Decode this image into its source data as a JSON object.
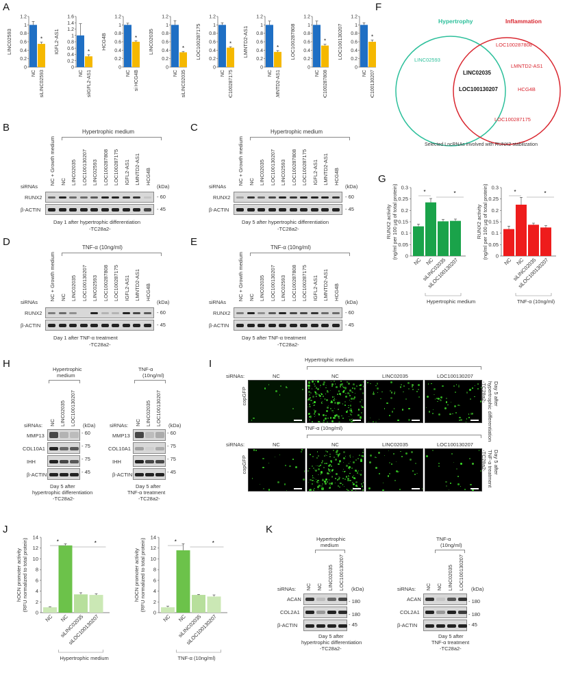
{
  "panels": {
    "A": "A",
    "B": "B",
    "C": "C",
    "D": "D",
    "E": "E",
    "F": "F",
    "G": "G",
    "H": "H",
    "I": "I",
    "J": "J",
    "K": "K"
  },
  "colors": {
    "nc_blue": "#1f6fc4",
    "si_yellow": "#f5b800",
    "hypertrophy_teal": "#2bbf9a",
    "inflammation_red": "#d9262f",
    "green_bar": "#1aa34a",
    "red_bar": "#ee1c1c",
    "j_dark_green": "#6cc24a",
    "j_light_green": "#cbe8b5"
  },
  "chart_data": [
    {
      "id": "A1",
      "type": "bar",
      "ylabel": "LINC02593",
      "categories": [
        "NC",
        "siLINC02593"
      ],
      "values": [
        1.0,
        0.55
      ],
      "errors": [
        0.08,
        0.04
      ],
      "ylim": [
        0,
        1.2
      ],
      "yticks": [
        "0",
        "0.2",
        "0.4",
        "0.6",
        "0.8",
        "1",
        "1.2"
      ],
      "significance": "*"
    },
    {
      "id": "A2",
      "type": "bar",
      "ylabel": "IGFL2-AS1",
      "categories": [
        "NC",
        "siIGFL2-AS1"
      ],
      "values": [
        1.0,
        0.34
      ],
      "errors": [
        0.37,
        0.05
      ],
      "ylim": [
        0,
        1.6
      ],
      "yticks": [
        "0",
        "0.2",
        "0.4",
        "0.6",
        "0.8",
        "1",
        "1.2",
        "1.4",
        "1.6"
      ],
      "significance": "*"
    },
    {
      "id": "A3",
      "type": "bar",
      "ylabel": "HCG4B",
      "categories": [
        "NC",
        "si HCG4B"
      ],
      "values": [
        1.0,
        0.6
      ],
      "errors": [
        0.04,
        0.02
      ],
      "ylim": [
        0,
        1.2
      ],
      "yticks": [
        "0",
        "0.2",
        "0.4",
        "0.6",
        "0.8",
        "1",
        "1.2"
      ],
      "significance": "*"
    },
    {
      "id": "A4",
      "type": "bar",
      "ylabel": "LINC02035",
      "categories": [
        "NC",
        "siLINC02035"
      ],
      "values": [
        1.0,
        0.35
      ],
      "errors": [
        0.1,
        0.02
      ],
      "ylim": [
        0,
        1.2
      ],
      "yticks": [
        "0",
        "0.2",
        "0.4",
        "0.6",
        "0.8",
        "1",
        "1.2"
      ],
      "significance": "*"
    },
    {
      "id": "A5",
      "type": "bar",
      "ylabel": "LOC100287175",
      "categories": [
        "NC",
        "siLOC100287175"
      ],
      "values": [
        1.0,
        0.46
      ],
      "errors": [
        0.05,
        0.02
      ],
      "ylim": [
        0,
        1.2
      ],
      "yticks": [
        "0",
        "0.2",
        "0.4",
        "0.6",
        "0.8",
        "1",
        "1.2"
      ],
      "significance": "*"
    },
    {
      "id": "A6",
      "type": "bar",
      "ylabel": "LMNTD2-AS1",
      "categories": [
        "NC",
        "siLMNTD2-AS1"
      ],
      "values": [
        1.0,
        0.36
      ],
      "errors": [
        0.09,
        0.03
      ],
      "ylim": [
        0,
        1.2
      ],
      "yticks": [
        "0",
        "0.2",
        "0.4",
        "0.6",
        "0.8",
        "1",
        "1.2"
      ],
      "significance": "*"
    },
    {
      "id": "A7",
      "type": "bar",
      "ylabel": "LOC100287808",
      "categories": [
        "NC",
        "siLOC100287808"
      ],
      "values": [
        1.0,
        0.51
      ],
      "errors": [
        0.09,
        0.03
      ],
      "ylim": [
        0,
        1.2
      ],
      "yticks": [
        "0",
        "0.2",
        "0.4",
        "0.6",
        "0.8",
        "1",
        "1.2"
      ],
      "significance": "*"
    },
    {
      "id": "A8",
      "type": "bar",
      "ylabel": "LOC100130207",
      "categories": [
        "NC",
        "siLOC100130207"
      ],
      "values": [
        1.0,
        0.6
      ],
      "errors": [
        0.05,
        0.04
      ],
      "ylim": [
        0,
        1.2
      ],
      "yticks": [
        "0",
        "0.2",
        "0.4",
        "0.6",
        "0.8",
        "1",
        "1.2"
      ],
      "significance": "*"
    },
    {
      "id": "G1",
      "type": "bar",
      "ylabel": "RUNX2 activity (ng/ml per 100 µg of total protein)",
      "categories": [
        "NC",
        "NC",
        "siLINC02035",
        "siLOC100130207"
      ],
      "values": [
        0.13,
        0.235,
        0.152,
        0.154
      ],
      "errors": [
        0.01,
        0.017,
        0.008,
        0.008
      ],
      "ylim": [
        0,
        0.3
      ],
      "yticks": [
        "0",
        "0.05",
        "0.1",
        "0.15",
        "0.2",
        "0.25",
        "0.3"
      ],
      "group_label": "Hypertrophic medium",
      "significance": [
        "*",
        "*"
      ]
    },
    {
      "id": "G2",
      "type": "bar",
      "ylabel": "RUNX2 activity (ng/ml per 100 µg of total protein)",
      "categories": [
        "NC",
        "NC",
        "siLINC02035",
        "siLOC100130207"
      ],
      "values": [
        0.118,
        0.225,
        0.137,
        0.125
      ],
      "errors": [
        0.013,
        0.032,
        0.007,
        0.008
      ],
      "ylim": [
        0,
        0.3
      ],
      "yticks": [
        "0",
        "0.05",
        "0.1",
        "0.15",
        "0.2",
        "0.25",
        "0.3"
      ],
      "group_label": "TNF-α (10ng/ml)",
      "significance": [
        "*",
        "*"
      ]
    },
    {
      "id": "J1",
      "type": "bar",
      "ylabel": "hOCN promoter activity (RFU normalized to total protein)",
      "categories": [
        "NC",
        "NC",
        "siLINC02035",
        "siLOC100130207"
      ],
      "values": [
        1.0,
        12.5,
        3.4,
        3.3
      ],
      "errors": [
        0.1,
        0.3,
        0.3,
        0.2
      ],
      "ylim": [
        0,
        14
      ],
      "yticks": [
        "0",
        "2",
        "4",
        "6",
        "8",
        "10",
        "12",
        "14"
      ],
      "group_label": "Hypertrophic medium",
      "significance": [
        "*",
        "*"
      ]
    },
    {
      "id": "J2",
      "type": "bar",
      "ylabel": "hOCN promoter activity (RFU normalized to total protein)",
      "categories": [
        "NC",
        "NC",
        "siLINC02035",
        "siLOC100130207"
      ],
      "values": [
        1.0,
        11.6,
        3.3,
        3.0
      ],
      "errors": [
        0.2,
        1.2,
        0.1,
        0.3
      ],
      "ylim": [
        0,
        14
      ],
      "yticks": [
        "0",
        "2",
        "4",
        "6",
        "8",
        "10",
        "12",
        "14"
      ],
      "group_label": "TNF-α (10ng/ml)",
      "significance": [
        "*",
        "*"
      ]
    }
  ],
  "venn": {
    "left_title": "Hypertrophy",
    "right_title": "Inflammation",
    "left_only": [
      "LINC02593"
    ],
    "intersection": [
      "LINC02035",
      "LOC100130207"
    ],
    "right_only": [
      "LOC100287808",
      "LMNTD2-AS1",
      "HCG4B",
      "LOC100287175"
    ],
    "caption": "Selected LncRNAs involved with RUNX2 stabilization"
  },
  "blots_bcde": {
    "lanes": [
      "NC + Growth medium",
      "NC",
      "LINC02035",
      "LOC100130207",
      "LINC02593",
      "LOC100287808",
      "LOC100287175",
      "IGFL2-AS1",
      "LMNTD2-AS1",
      "HCG4B"
    ],
    "sirnas": "siRNAs",
    "kda": "(kDa)",
    "rows": [
      "RUNX2",
      "β-ACTIN"
    ],
    "mw": [
      "60",
      "45"
    ],
    "B": {
      "treatment": "Hypertrophic medium",
      "caption1": "Day 1 after hypertrophic differentiation",
      "caption2": "-TC28a2-"
    },
    "C": {
      "treatment": "Hypertrophic medium",
      "caption1": "Day 5 after hypertrophic differentiation",
      "caption2": "-TC28a2-"
    },
    "D": {
      "treatment": "TNF-α (10ng/ml)",
      "caption1": "Day 1 after TNF-α treatment",
      "caption2": "-TC28a2-"
    },
    "E": {
      "treatment": "TNF-α (10ng/ml)",
      "caption1": "Day 5 after TNF-α treatment",
      "caption2": "-TC28a2-"
    }
  },
  "blots_h": {
    "sirnas": "siRNAs:",
    "kda": "(kDa)",
    "lanes": [
      "NC",
      "LINC02035",
      "LOC100130207"
    ],
    "rows": [
      "MMP13",
      "COL10A1",
      "IHH",
      "β-ACTIN"
    ],
    "mw": [
      "60",
      "75",
      "75",
      "45"
    ],
    "left": {
      "treatment1": "Hypertrophic",
      "treatment2": "medium",
      "caption1": "Day 5 after",
      "caption2": "hypertrophic differentiation",
      "caption3": "-TC28a2-"
    },
    "right": {
      "treatment1": "TNF-α",
      "treatment2": "(10ng/ml)",
      "caption1": "Day 5 after",
      "caption2": "TNF-α treatment",
      "caption3": "-TC28a2-"
    }
  },
  "panel_i": {
    "sirnas": "siRNAs:",
    "columns": [
      "NC",
      "NC",
      "LINC02035",
      "LOC100130207"
    ],
    "row_label": "copGFP",
    "top_treatment": "Hypertrophic medium",
    "bottom_treatment": "TNF-α (10ng/ml)",
    "top_side": [
      "Day 5 after",
      "hypertrophic differentiation",
      "-TC28a2-"
    ],
    "bottom_side": [
      "Day 5 after",
      "TNF-α treatment",
      "-TC28a2-"
    ]
  },
  "blots_k": {
    "sirnas": "siRNAs:",
    "kda": "(kDa)",
    "lanes": [
      "NC",
      "NC",
      "LINC02035",
      "LOC100130207"
    ],
    "rows": [
      "ACAN",
      "COL2A1",
      "β-ACTIN"
    ],
    "mw": [
      "180",
      "180",
      "45"
    ],
    "left": {
      "treatment1": "Hypertrophic",
      "treatment2": "medium",
      "caption1": "Day 5 after",
      "caption2": "hypertrophic differentiation",
      "caption3": "-TC28a2-"
    },
    "right": {
      "treatment1": "TNF-α",
      "treatment2": "(10ng/ml)",
      "caption1": "Day 5 after",
      "caption2": "TNF-α treatment",
      "caption3": "-TC28a2-"
    }
  }
}
